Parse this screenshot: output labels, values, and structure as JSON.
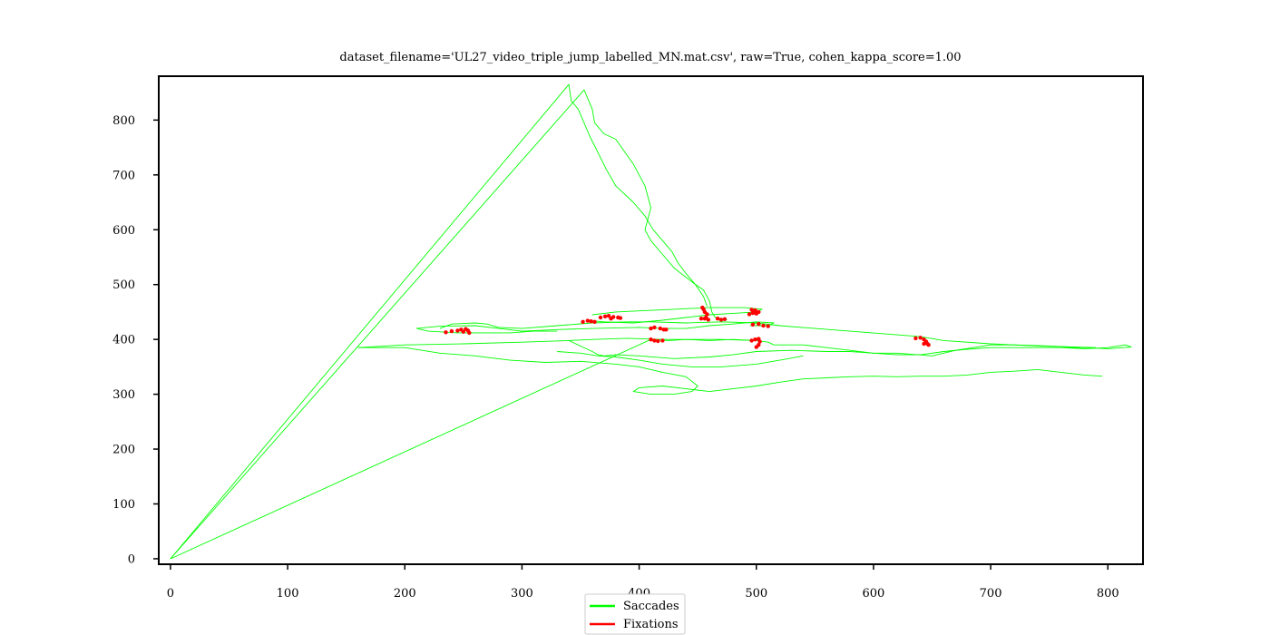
{
  "chart_data": {
    "type": "scatter",
    "title": "dataset_filename='UL27_video_triple_jump_labelled_MN.mat.csv', raw=True, cohen_kappa_score=1.00",
    "xlabel": "",
    "ylabel": "",
    "xlim": [
      -10,
      830
    ],
    "ylim": [
      -10,
      880
    ],
    "xticks": [
      0,
      100,
      200,
      300,
      400,
      500,
      600,
      700,
      800
    ],
    "yticks": [
      0,
      100,
      200,
      300,
      400,
      500,
      600,
      700,
      800
    ],
    "grid": false,
    "legend_position": "bottom-center",
    "series": [
      {
        "name": "Saccades",
        "color": "#00ff00",
        "segments": [
          [
            [
              0,
              0
            ],
            [
              340,
              865
            ],
            [
              342,
              835
            ],
            [
              348,
              820
            ]
          ],
          [
            [
              0,
              0
            ],
            [
              353,
              855
            ],
            [
              360,
              820
            ],
            [
              362,
              795
            ],
            [
              370,
              775
            ],
            [
              380,
              765
            ],
            [
              385,
              750
            ],
            [
              395,
              720
            ],
            [
              405,
              680
            ],
            [
              410,
              640
            ],
            [
              405,
              600
            ],
            [
              410,
              580
            ],
            [
              420,
              555
            ],
            [
              430,
              530
            ],
            [
              445,
              505
            ],
            [
              455,
              490
            ],
            [
              460,
              470
            ],
            [
              462,
              450
            ],
            [
              465,
              440
            ],
            [
              475,
              436
            ]
          ],
          [
            [
              348,
              820
            ],
            [
              352,
              800
            ],
            [
              358,
              770
            ],
            [
              365,
              740
            ],
            [
              372,
              710
            ],
            [
              380,
              680
            ],
            [
              395,
              650
            ],
            [
              405,
              625
            ],
            [
              412,
              600
            ],
            [
              420,
              580
            ],
            [
              428,
              560
            ],
            [
              433,
              540
            ],
            [
              440,
              520
            ],
            [
              448,
              500
            ],
            [
              455,
              478
            ],
            [
              458,
              460
            ]
          ],
          [
            [
              0,
              0
            ],
            [
              410,
              400
            ],
            [
              425,
              398
            ],
            [
              440,
              400
            ],
            [
              460,
              398
            ],
            [
              480,
              400
            ],
            [
              500,
              398
            ],
            [
              510,
              395
            ],
            [
              515,
              390
            ],
            [
              540,
              390
            ],
            [
              560,
              385
            ],
            [
              580,
              380
            ],
            [
              600,
              375
            ],
            [
              620,
              372
            ],
            [
              640,
              372
            ],
            [
              660,
              378
            ],
            [
              680,
              382
            ],
            [
              700,
              385
            ],
            [
              720,
              385
            ],
            [
              740,
              385
            ],
            [
              760,
              385
            ],
            [
              780,
              383
            ],
            [
              800,
              385
            ],
            [
              815,
              390
            ],
            [
              820,
              386
            ],
            [
              800,
              383
            ],
            [
              780,
              385
            ],
            [
              760,
              385
            ]
          ],
          [
            [
              160,
              385
            ],
            [
              200,
              390
            ],
            [
              250,
              392
            ],
            [
              300,
              395
            ],
            [
              340,
              398
            ],
            [
              360,
              400
            ],
            [
              390,
              402
            ],
            [
              420,
              400
            ],
            [
              440,
              400
            ],
            [
              470,
              400
            ],
            [
              500,
              398
            ]
          ],
          [
            [
              160,
              385
            ],
            [
              200,
              385
            ],
            [
              230,
              375
            ],
            [
              260,
              370
            ],
            [
              290,
              362
            ],
            [
              320,
              358
            ],
            [
              350,
              360
            ],
            [
              380,
              355
            ],
            [
              400,
              350
            ],
            [
              420,
              340
            ],
            [
              440,
              332
            ],
            [
              450,
              315
            ],
            [
              445,
              305
            ],
            [
              430,
              300
            ],
            [
              410,
              300
            ],
            [
              395,
              305
            ],
            [
              400,
              312
            ],
            [
              420,
              315
            ],
            [
              440,
              310
            ],
            [
              460,
              305
            ],
            [
              480,
              310
            ],
            [
              500,
              315
            ],
            [
              520,
              322
            ],
            [
              540,
              328
            ],
            [
              560,
              330
            ],
            [
              580,
              332
            ],
            [
              600,
              333
            ],
            [
              620,
              332
            ],
            [
              640,
              333
            ],
            [
              660,
              333
            ],
            [
              680,
              335
            ],
            [
              700,
              340
            ],
            [
              720,
              342
            ],
            [
              740,
              345
            ],
            [
              760,
              340
            ],
            [
              780,
              335
            ],
            [
              795,
              333
            ],
            [
              780,
              335
            ]
          ],
          [
            [
              340,
              398
            ],
            [
              360,
              378
            ],
            [
              365,
              372
            ],
            [
              370,
              370
            ],
            [
              380,
              372
            ],
            [
              400,
              370
            ],
            [
              430,
              365
            ],
            [
              460,
              368
            ],
            [
              480,
              372
            ],
            [
              500,
              378
            ],
            [
              530,
              380
            ],
            [
              560,
              378
            ],
            [
              580,
              378
            ],
            [
              600,
              375
            ],
            [
              620,
              375
            ],
            [
              650,
              370
            ],
            [
              670,
              380
            ],
            [
              700,
              390
            ],
            [
              720,
              390
            ],
            [
              750,
              388
            ],
            [
              780,
              385
            ]
          ],
          [
            [
              330,
              378
            ],
            [
              350,
              375
            ],
            [
              365,
              370
            ],
            [
              380,
              368
            ],
            [
              400,
              362
            ],
            [
              420,
              355
            ],
            [
              445,
              350
            ],
            [
              470,
              350
            ],
            [
              500,
              355
            ],
            [
              520,
              362
            ],
            [
              540,
              370
            ]
          ],
          [
            [
              230,
              420
            ],
            [
              240,
              428
            ],
            [
              260,
              430
            ],
            [
              270,
              428
            ],
            [
              280,
              422
            ],
            [
              300,
              420
            ],
            [
              330,
              425
            ],
            [
              360,
              430
            ],
            [
              390,
              432
            ],
            [
              410,
              432
            ],
            [
              440,
              430
            ],
            [
              470,
              432
            ],
            [
              500,
              430
            ],
            [
              520,
              425
            ],
            [
              550,
              420
            ],
            [
              580,
              415
            ],
            [
              610,
              410
            ],
            [
              640,
              405
            ],
            [
              660,
              398
            ],
            [
              700,
              392
            ],
            [
              740,
              388
            ],
            [
              790,
              385
            ]
          ],
          [
            [
              210,
              420
            ],
            [
              230,
              424
            ],
            [
              260,
              425
            ],
            [
              280,
              420
            ],
            [
              300,
              415
            ],
            [
              330,
              418
            ],
            [
              360,
              420
            ],
            [
              400,
              422
            ],
            [
              420,
              420
            ],
            [
              440,
              420
            ],
            [
              460,
              425
            ],
            [
              480,
              428
            ],
            [
              500,
              432
            ],
            [
              515,
              430
            ],
            [
              510,
              425
            ],
            [
              495,
              425
            ],
            [
              500,
              430
            ]
          ],
          [
            [
              360,
              445
            ],
            [
              380,
              450
            ],
            [
              400,
              452
            ],
            [
              430,
              455
            ],
            [
              460,
              458
            ],
            [
              490,
              458
            ],
            [
              505,
              455
            ],
            [
              500,
              450
            ],
            [
              485,
              448
            ],
            [
              460,
              445
            ],
            [
              440,
              440
            ],
            [
              420,
              435
            ],
            [
              395,
              430
            ],
            [
              370,
              432
            ],
            [
              355,
              435
            ]
          ],
          [
            [
              210,
              420
            ],
            [
              220,
              415
            ],
            [
              245,
              412
            ],
            [
              265,
              412
            ],
            [
              290,
              412
            ],
            [
              310,
              415
            ],
            [
              330,
              415
            ]
          ]
        ]
      },
      {
        "name": "Fixations",
        "color": "#ff0000",
        "points": [
          [
            235,
            413
          ],
          [
            240,
            415
          ],
          [
            245,
            416
          ],
          [
            248,
            418
          ],
          [
            250,
            414
          ],
          [
            252,
            419
          ],
          [
            254,
            416
          ],
          [
            255,
            412
          ],
          [
            352,
            432
          ],
          [
            356,
            434
          ],
          [
            359,
            433
          ],
          [
            362,
            432
          ],
          [
            367,
            440
          ],
          [
            371,
            442
          ],
          [
            374,
            443
          ],
          [
            376,
            438
          ],
          [
            378,
            441
          ],
          [
            382,
            440
          ],
          [
            384,
            439
          ],
          [
            410,
            420
          ],
          [
            413,
            422
          ],
          [
            418,
            420
          ],
          [
            421,
            418
          ],
          [
            423,
            418
          ],
          [
            410,
            400
          ],
          [
            413,
            398
          ],
          [
            416,
            397
          ],
          [
            420,
            398
          ],
          [
            454,
            458
          ],
          [
            455,
            455
          ],
          [
            456,
            450
          ],
          [
            458,
            446
          ],
          [
            457,
            440
          ],
          [
            459,
            436
          ],
          [
            456,
            438
          ],
          [
            453,
            438
          ],
          [
            467,
            438
          ],
          [
            470,
            436
          ],
          [
            473,
            437
          ],
          [
            494,
            446
          ],
          [
            497,
            448
          ],
          [
            500,
            447
          ],
          [
            502,
            450
          ],
          [
            499,
            453
          ],
          [
            496,
            454
          ],
          [
            497,
            427
          ],
          [
            502,
            428
          ],
          [
            506,
            425
          ],
          [
            510,
            424
          ],
          [
            496,
            398
          ],
          [
            499,
            400
          ],
          [
            502,
            401
          ],
          [
            503,
            396
          ],
          [
            502,
            390
          ],
          [
            500,
            386
          ],
          [
            636,
            402
          ],
          [
            640,
            403
          ],
          [
            643,
            400
          ],
          [
            645,
            396
          ],
          [
            646,
            392
          ],
          [
            647,
            390
          ],
          [
            643,
            392
          ]
        ]
      }
    ],
    "legend": [
      {
        "label": "Saccades",
        "color": "#00ff00"
      },
      {
        "label": "Fixations",
        "color": "#ff0000"
      }
    ]
  }
}
